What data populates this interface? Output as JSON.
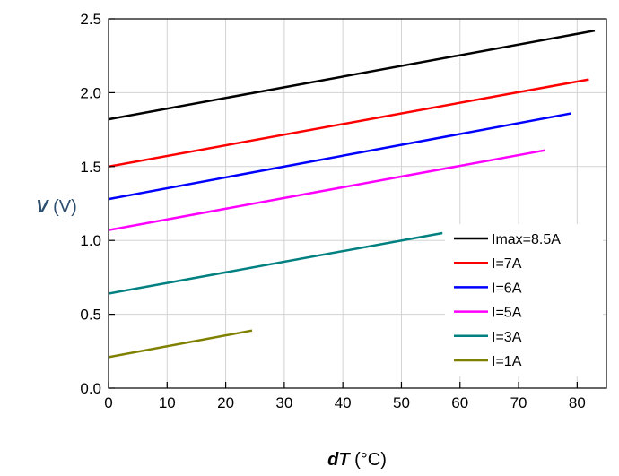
{
  "chart_data": {
    "type": "line",
    "title": "",
    "xlabel": {
      "var": "dT",
      "unit": " (°C)"
    },
    "ylabel": {
      "var": "V",
      "unit": " (V)"
    },
    "xlim": [
      0,
      85
    ],
    "ylim": [
      0,
      2.5
    ],
    "xticks": [
      "0",
      "10",
      "20",
      "30",
      "40",
      "50",
      "60",
      "70",
      "80"
    ],
    "yticks": [
      "0.0",
      "0.5",
      "1.0",
      "1.5",
      "2.0",
      "2.5"
    ],
    "grid": true,
    "legend_position": "bottom-right",
    "series": [
      {
        "name": "Imax=8.5A",
        "color": "#000000",
        "x": [
          0,
          83
        ],
        "y": [
          1.82,
          2.42
        ]
      },
      {
        "name": "I=7A",
        "color": "#ff0000",
        "x": [
          0,
          82
        ],
        "y": [
          1.5,
          2.09
        ]
      },
      {
        "name": "I=6A",
        "color": "#0000ff",
        "x": [
          0,
          79
        ],
        "y": [
          1.28,
          1.86
        ]
      },
      {
        "name": "I=5A",
        "color": "#ff00ff",
        "x": [
          0,
          74.5
        ],
        "y": [
          1.07,
          1.61
        ]
      },
      {
        "name": "I=3A",
        "color": "#008080",
        "x": [
          0,
          57
        ],
        "y": [
          0.64,
          1.05
        ]
      },
      {
        "name": "I=1A",
        "color": "#808000",
        "x": [
          0,
          24.5
        ],
        "y": [
          0.21,
          0.39
        ]
      }
    ]
  }
}
